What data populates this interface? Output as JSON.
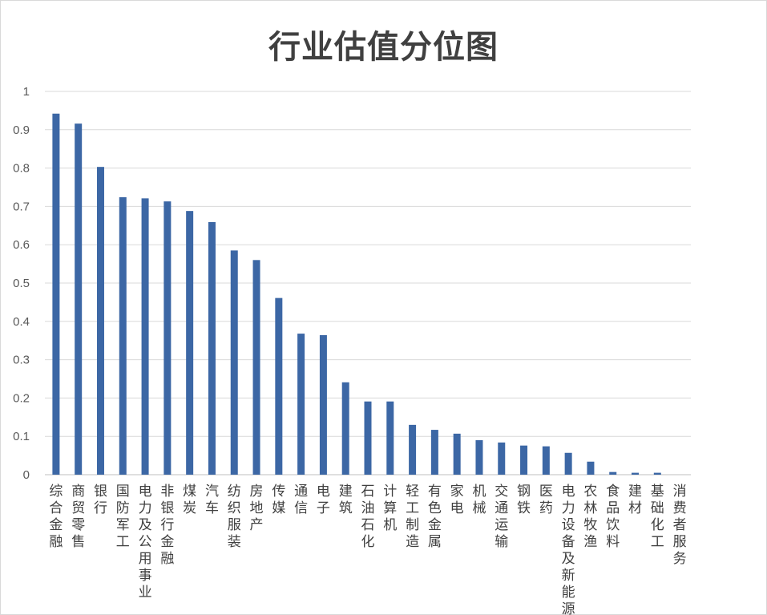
{
  "chart_data": {
    "type": "bar",
    "title": "行业估值分位图",
    "xlabel": "",
    "ylabel": "",
    "ylim": [
      0,
      1
    ],
    "yticks": [
      "0",
      "0.1",
      "0.2",
      "0.3",
      "0.4",
      "0.5",
      "0.6",
      "0.7",
      "0.8",
      "0.9",
      "1"
    ],
    "grid": true,
    "legend": "none",
    "bar_color": "#3c67a5",
    "categories": [
      "综合金融",
      "商贸零售",
      "银行",
      "国防军工",
      "电力及公用事业",
      "非银行金融",
      "煤炭",
      "汽车",
      "纺织服装",
      "房地产",
      "传媒",
      "通信",
      "电子",
      "建筑",
      "石油石化",
      "计算机",
      "轻工制造",
      "有色金属",
      "家电",
      "机械",
      "交通运输",
      "钢铁",
      "医药",
      "电力设备及新能源",
      "农林牧渔",
      "食品饮料",
      "建材",
      "基础化工",
      "消费者服务"
    ],
    "values": [
      0.942,
      0.916,
      0.803,
      0.724,
      0.721,
      0.713,
      0.688,
      0.659,
      0.585,
      0.56,
      0.461,
      0.368,
      0.364,
      0.241,
      0.191,
      0.191,
      0.13,
      0.117,
      0.107,
      0.09,
      0.084,
      0.076,
      0.074,
      0.057,
      0.034,
      0.007,
      0.005,
      0.005,
      0.0
    ]
  }
}
